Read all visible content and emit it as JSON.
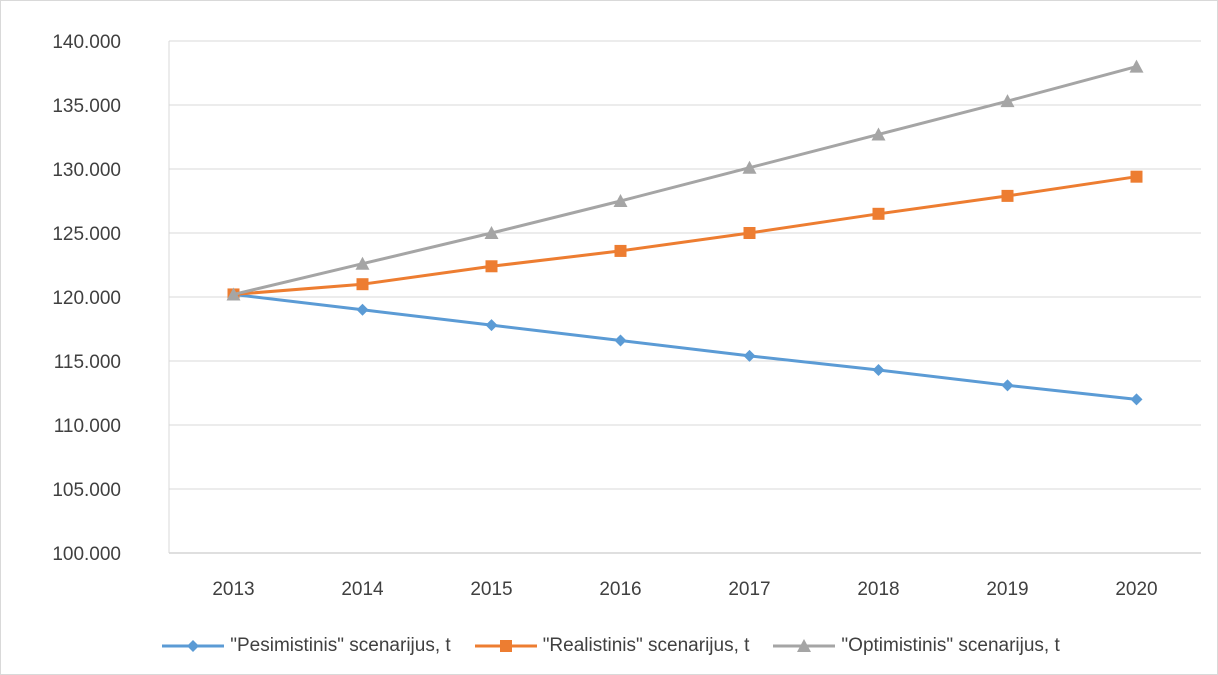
{
  "chart_data": {
    "type": "line",
    "categories": [
      "2013",
      "2014",
      "2015",
      "2016",
      "2017",
      "2018",
      "2019",
      "2020"
    ],
    "ylim": [
      100000,
      140000
    ],
    "yticks": [
      100000,
      105000,
      110000,
      115000,
      120000,
      125000,
      130000,
      135000,
      140000
    ],
    "ytick_labels": [
      "100.000",
      "105.000",
      "110.000",
      "115.000",
      "120.000",
      "125.000",
      "130.000",
      "135.000",
      "140.000"
    ],
    "grid": true,
    "legend_position": "bottom",
    "series": [
      {
        "name": "\"Pesimistinis\" scenarijus, t",
        "color": "#5b9bd5",
        "marker": "diamond",
        "values": [
          120200,
          119000,
          117800,
          116600,
          115400,
          114300,
          113100,
          112000
        ]
      },
      {
        "name": "\"Realistinis\" scenarijus, t",
        "color": "#ed7d31",
        "marker": "square",
        "values": [
          120200,
          121000,
          122400,
          123600,
          125000,
          126500,
          127900,
          129400
        ]
      },
      {
        "name": "\"Optimistinis\" scenarijus, t",
        "color": "#a5a5a5",
        "marker": "triangle",
        "values": [
          120200,
          122600,
          125000,
          127500,
          130100,
          132700,
          135300,
          138000
        ]
      }
    ]
  }
}
